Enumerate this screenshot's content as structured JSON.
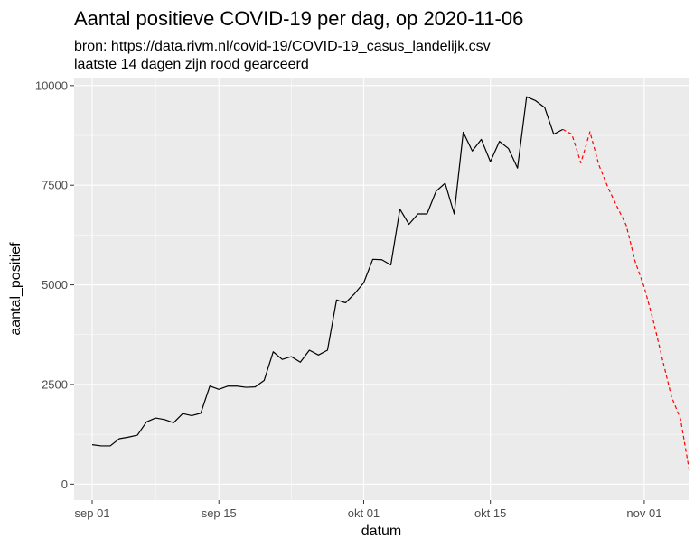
{
  "chart_data": {
    "type": "line",
    "title": "Aantal positieve COVID-19 per dag, op 2020-11-06",
    "subtitle_lines": [
      "bron: https://data.rivm.nl/covid-19/COVID-19_casus_landelijk.csv",
      "laatste 14 dagen zijn rood gearceerd"
    ],
    "xlabel": "datum",
    "ylabel": "aantal_positief",
    "xlim": [
      "2020-08-30",
      "2020-11-06"
    ],
    "ylim": [
      -400,
      10200
    ],
    "x_ticks": [
      {
        "date": "2020-09-01",
        "label": "sep 01"
      },
      {
        "date": "2020-09-15",
        "label": "sep 15"
      },
      {
        "date": "2020-10-01",
        "label": "okt 01"
      },
      {
        "date": "2020-10-15",
        "label": "okt 15"
      },
      {
        "date": "2020-11-01",
        "label": "nov 01"
      }
    ],
    "y_ticks": [
      0,
      2500,
      5000,
      7500,
      10000
    ],
    "y_tick_labels": [
      "0",
      "2500",
      "5000",
      "7500",
      "10000"
    ],
    "grid": true,
    "colors": {
      "panel": "#ebebeb",
      "grid": "#ffffff",
      "recent": "#ff0000",
      "history": "#000000"
    },
    "series": [
      {
        "style": "solid",
        "color": "#000000",
        "points": [
          [
            "2020-09-01",
            990
          ],
          [
            "2020-09-02",
            960
          ],
          [
            "2020-09-03",
            960
          ],
          [
            "2020-09-04",
            1140
          ],
          [
            "2020-09-05",
            1180
          ],
          [
            "2020-09-06",
            1230
          ],
          [
            "2020-09-07",
            1560
          ],
          [
            "2020-09-08",
            1660
          ],
          [
            "2020-09-09",
            1620
          ],
          [
            "2020-09-10",
            1540
          ],
          [
            "2020-09-11",
            1770
          ],
          [
            "2020-09-12",
            1720
          ],
          [
            "2020-09-13",
            1780
          ],
          [
            "2020-09-14",
            2460
          ],
          [
            "2020-09-15",
            2380
          ],
          [
            "2020-09-16",
            2460
          ],
          [
            "2020-09-17",
            2460
          ],
          [
            "2020-09-18",
            2430
          ],
          [
            "2020-09-19",
            2440
          ],
          [
            "2020-09-20",
            2600
          ],
          [
            "2020-09-21",
            3320
          ],
          [
            "2020-09-22",
            3130
          ],
          [
            "2020-09-23",
            3200
          ],
          [
            "2020-09-24",
            3060
          ],
          [
            "2020-09-25",
            3360
          ],
          [
            "2020-09-26",
            3240
          ],
          [
            "2020-09-27",
            3360
          ],
          [
            "2020-09-28",
            4620
          ],
          [
            "2020-09-29",
            4550
          ],
          [
            "2020-09-30",
            4780
          ],
          [
            "2020-10-01",
            5050
          ],
          [
            "2020-10-02",
            5640
          ],
          [
            "2020-10-03",
            5630
          ],
          [
            "2020-10-04",
            5500
          ],
          [
            "2020-10-05",
            6900
          ],
          [
            "2020-10-06",
            6520
          ],
          [
            "2020-10-07",
            6780
          ],
          [
            "2020-10-08",
            6780
          ],
          [
            "2020-10-09",
            7350
          ],
          [
            "2020-10-10",
            7550
          ],
          [
            "2020-10-11",
            6780
          ],
          [
            "2020-10-12",
            8830
          ],
          [
            "2020-10-13",
            8360
          ],
          [
            "2020-10-14",
            8650
          ],
          [
            "2020-10-15",
            8090
          ],
          [
            "2020-10-16",
            8600
          ],
          [
            "2020-10-17",
            8420
          ],
          [
            "2020-10-18",
            7930
          ],
          [
            "2020-10-19",
            9720
          ],
          [
            "2020-10-20",
            9620
          ],
          [
            "2020-10-21",
            9450
          ],
          [
            "2020-10-22",
            8780
          ],
          [
            "2020-10-23",
            8900
          ]
        ]
      },
      {
        "style": "dashed",
        "color": "#ff0000",
        "points": [
          [
            "2020-10-23",
            8900
          ],
          [
            "2020-10-24",
            8780
          ],
          [
            "2020-10-25",
            8060
          ],
          [
            "2020-10-26",
            8840
          ],
          [
            "2020-10-27",
            8000
          ],
          [
            "2020-10-28",
            7440
          ],
          [
            "2020-10-29",
            6960
          ],
          [
            "2020-10-30",
            6500
          ],
          [
            "2020-10-31",
            5580
          ],
          [
            "2020-11-01",
            4940
          ],
          [
            "2020-11-02",
            4100
          ],
          [
            "2020-11-03",
            3140
          ],
          [
            "2020-11-04",
            2200
          ],
          [
            "2020-11-05",
            1640
          ],
          [
            "2020-11-06",
            310
          ]
        ]
      }
    ]
  }
}
